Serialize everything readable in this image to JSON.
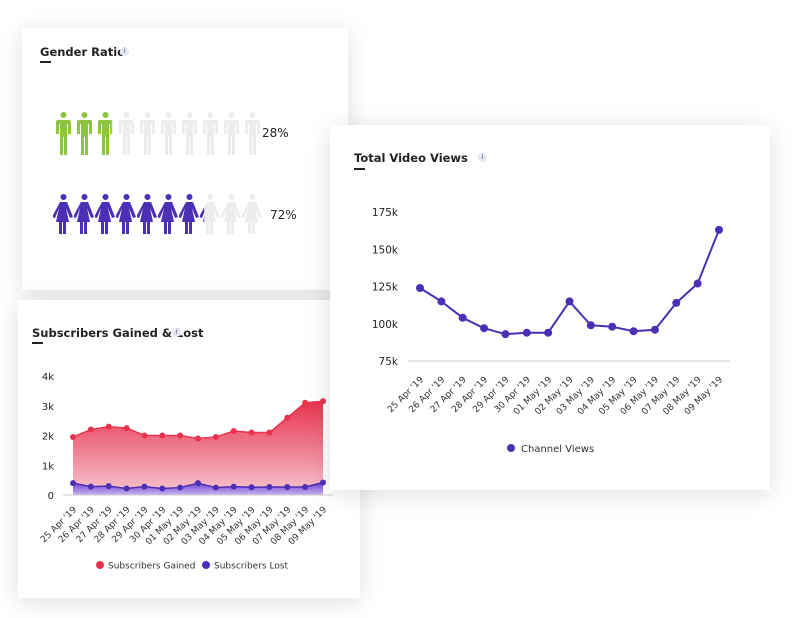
{
  "gender": {
    "title": "Gender Ratio",
    "info_icon": "info-icon",
    "rows": [
      {
        "label": "28%",
        "value": 28,
        "icon": "male-icon",
        "color": "#8cc63f"
      },
      {
        "label": "72%",
        "value": 72,
        "icon": "female-icon",
        "color": "#4b2fb5"
      }
    ],
    "empty_color": "#ececec"
  },
  "views": {
    "title": "Total Video Views",
    "info_icon": "info-icon",
    "chart_data": {
      "type": "line",
      "categories": [
        "25 Apr '19",
        "26 Apr '19",
        "27 Apr '19",
        "28 Apr '19",
        "29 Apr '19",
        "30 Apr '19",
        "01 May '19",
        "02 May '19",
        "03 May '19",
        "04 May '19",
        "05 May '19",
        "06 May '19",
        "07 May '19",
        "08 May '19",
        "09 May '19"
      ],
      "series": [
        {
          "name": "Channel Views",
          "color": "#4b2fb5",
          "values": [
            124000,
            115000,
            104000,
            97000,
            93000,
            94000,
            94000,
            115000,
            99000,
            98000,
            95000,
            96000,
            114000,
            127000,
            163000
          ]
        }
      ],
      "yticks": [
        "75k",
        "100k",
        "125k",
        "150k",
        "175k"
      ],
      "ylim": [
        75000,
        175000
      ],
      "legend": "bottom"
    }
  },
  "subs": {
    "title": "Subscribers Gained & Lost",
    "info_icon": "info-icon",
    "chart_data": {
      "type": "area",
      "categories": [
        "25 Apr '19",
        "26 Apr '19",
        "27 Apr '19",
        "28 Apr '19",
        "29 Apr '19",
        "30 Apr '19",
        "01 May '19",
        "02 May '19",
        "03 May '19",
        "04 May '19",
        "05 May '19",
        "06 May '19",
        "07 May '19",
        "08 May '19",
        "09 May '19"
      ],
      "series": [
        {
          "name": "Subscribers Gained",
          "color": "#e8334f",
          "values": [
            1950,
            2200,
            2300,
            2250,
            2000,
            2000,
            2000,
            1900,
            1950,
            2150,
            2100,
            2100,
            2600,
            3100,
            3150
          ]
        },
        {
          "name": "Subscribers Lost",
          "color": "#4b2fb5",
          "values": [
            400,
            280,
            300,
            220,
            280,
            220,
            250,
            400,
            250,
            280,
            260,
            270,
            270,
            270,
            420
          ]
        }
      ],
      "yticks": [
        "0",
        "1k",
        "2k",
        "3k",
        "4k"
      ],
      "ylim": [
        0,
        4000
      ],
      "legend": "bottom"
    }
  }
}
